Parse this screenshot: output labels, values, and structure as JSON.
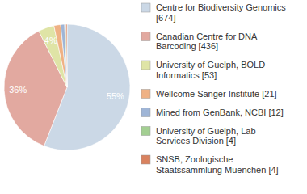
{
  "chart_data": {
    "type": "pie",
    "categories": [
      "Centre for Biodiversity Genomics [674]",
      "Canadian Centre for DNA Barcoding [436]",
      "University of Guelph, BOLD Informatics [53]",
      "Wellcome Sanger Institute [21]",
      "Mined from GenBank, NCBI [12]",
      "University of Guelph, Lab Services Division [4]",
      "SNSB, Zoologische Staatssammlung Muenchen [4]"
    ],
    "values": [
      55,
      36,
      4,
      1.7,
      1,
      0.3,
      0.3
    ],
    "value_labels": [
      "55%",
      "36%",
      "4%",
      null,
      null,
      null,
      null
    ],
    "colors": [
      "#cbd8e6",
      "#e2a9a0",
      "#dfe4a6",
      "#efb184",
      "#9fb5d6",
      "#a3cf92",
      "#d9825f"
    ],
    "data_labels": true,
    "legend": "right"
  }
}
